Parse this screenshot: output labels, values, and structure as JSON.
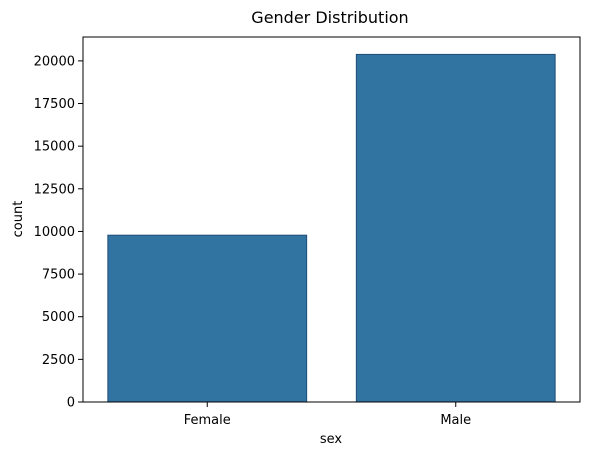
{
  "chart_data": {
    "type": "bar",
    "title": "Gender Distribution",
    "xlabel": "sex",
    "ylabel": "count",
    "categories": [
      "Female",
      "Male"
    ],
    "values": [
      9780,
      20380
    ],
    "ylim": [
      0,
      21400
    ],
    "yticks": [
      0,
      2500,
      5000,
      7500,
      10000,
      12500,
      15000,
      17500,
      20000
    ],
    "ytick_labels": [
      "0",
      "2500",
      "5000",
      "7500",
      "10000",
      "12500",
      "15000",
      "17500",
      "20000"
    ],
    "colors": {
      "bar": "#3274a1",
      "bar_edge": "#1f4e79",
      "axes": "#000000"
    },
    "grid": false,
    "legend": "none"
  }
}
